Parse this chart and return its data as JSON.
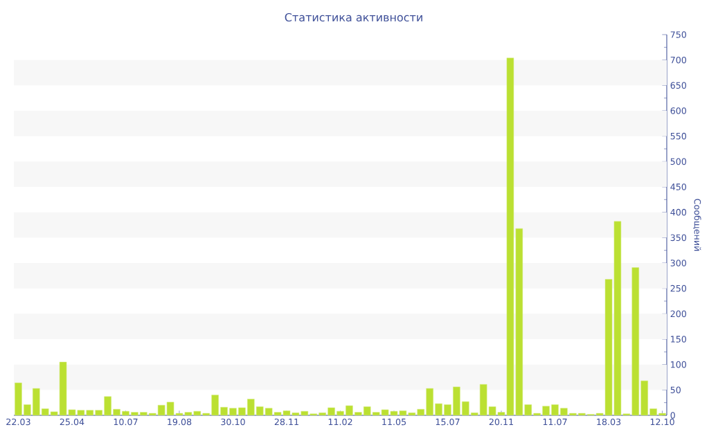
{
  "chart_data": {
    "type": "bar",
    "title": "Статистика активности",
    "ylabel": "Сообщений",
    "categories": [
      "22.03",
      null,
      null,
      null,
      null,
      null,
      "25.04",
      null,
      null,
      null,
      null,
      null,
      "10.07",
      null,
      null,
      null,
      null,
      null,
      "19.08",
      null,
      null,
      null,
      null,
      null,
      "30.10",
      null,
      null,
      null,
      null,
      null,
      "28.11",
      null,
      null,
      null,
      null,
      null,
      "11.02",
      null,
      null,
      null,
      null,
      null,
      "11.05",
      null,
      null,
      null,
      null,
      null,
      "15.07",
      null,
      null,
      null,
      null,
      null,
      "20.11",
      null,
      null,
      null,
      null,
      null,
      "11.07",
      null,
      null,
      null,
      null,
      null,
      "18.03",
      null,
      null,
      null,
      null,
      null,
      "12.10"
    ],
    "values": [
      64,
      21,
      53,
      13,
      7,
      105,
      11,
      10,
      10,
      10,
      37,
      12,
      8,
      6,
      6,
      4,
      20,
      26,
      4,
      6,
      8,
      4,
      40,
      16,
      14,
      15,
      32,
      17,
      14,
      6,
      9,
      5,
      8,
      3,
      5,
      15,
      8,
      19,
      6,
      17,
      6,
      11,
      8,
      9,
      5,
      12,
      53,
      23,
      21,
      56,
      27,
      5,
      61,
      17,
      6,
      704,
      368,
      21,
      4,
      18,
      21,
      14,
      4,
      4,
      2,
      4,
      268,
      382,
      3,
      291,
      68,
      13,
      4
    ],
    "color": "#bbe032",
    "ylim": [
      0,
      750
    ],
    "yticks": [
      0,
      50,
      100,
      150,
      200,
      250,
      300,
      350,
      400,
      450,
      500,
      550,
      600,
      650,
      700,
      750
    ],
    "bands": [
      {
        "axis": "y",
        "from": 50,
        "to": 100,
        "color": "#f7f7f7"
      },
      {
        "axis": "y",
        "from": 150,
        "to": 200,
        "color": "#f7f7f7"
      },
      {
        "axis": "y",
        "from": 250,
        "to": 300,
        "color": "#f7f7f7"
      },
      {
        "axis": "y",
        "from": 350,
        "to": 400,
        "color": "#f7f7f7"
      },
      {
        "axis": "y",
        "from": 450,
        "to": 500,
        "color": "#f7f7f7"
      },
      {
        "axis": "y",
        "from": 550,
        "to": 600,
        "color": "#f7f7f7"
      },
      {
        "axis": "y",
        "from": 650,
        "to": 700,
        "color": "#f7f7f7"
      }
    ]
  }
}
